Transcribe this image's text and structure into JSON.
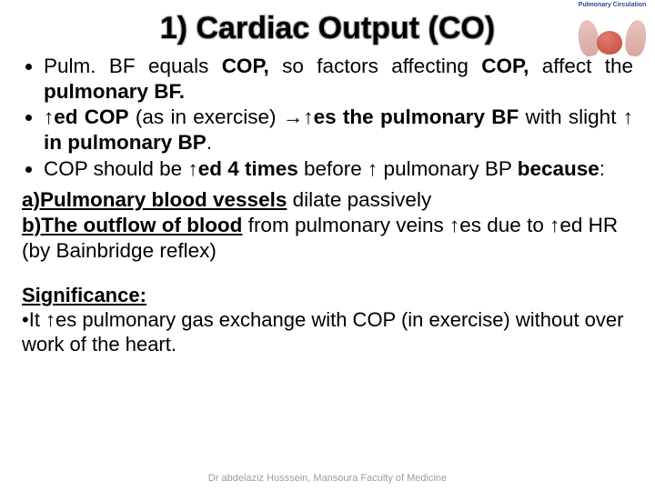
{
  "corner": {
    "caption": "Pulmonary Circulation"
  },
  "title": "1) Cardiac Output (CO)",
  "bullets": {
    "b1_a": "Pulm. BF equals ",
    "b1_b": "COP,",
    "b1_c": " so factors affecting ",
    "b1_d": "COP,",
    "b1_e": " affect the ",
    "b1_f": "pulmonary BF.",
    "b2_a": "↑ed COP",
    "b2_b": " (as in exercise) ",
    "b2_c": "→↑es the pulmonary BF",
    "b2_d": " with slight ",
    "b2_e": "↑ in pulmonary BP",
    "b2_f": ".",
    "b3_a": "COP should be ",
    "b3_b": "↑ed 4 times",
    "b3_c": " before ↑ pulmonary BP ",
    "b3_d": "because",
    "b3_e": ":"
  },
  "sub": {
    "a_label": "a)Pulmonary blood vessels",
    "a_text": " dilate passively",
    "b_label": "b)The outflow of blood",
    "b_text": " from pulmonary veins ↑es due to ↑ed HR (by Bainbridge reflex)"
  },
  "sig": {
    "heading": "Significance:",
    "line_a": "It ↑es pulmonary gas exchange with COP (in exercise) without over work of the heart."
  },
  "footer": "Dr abdelaziz Husssein, Mansoura Faculty of Medicine"
}
